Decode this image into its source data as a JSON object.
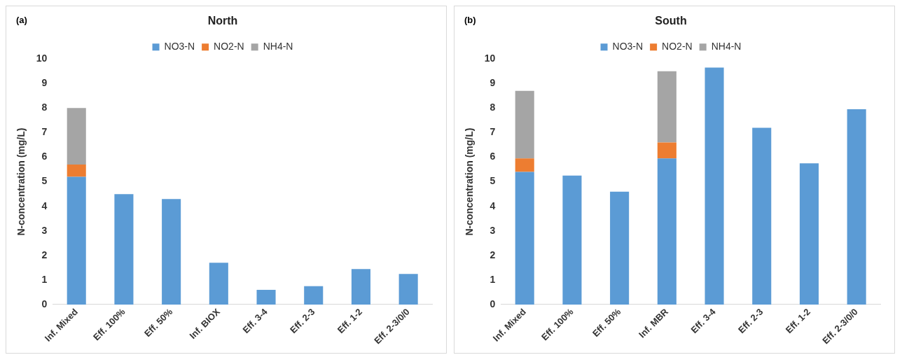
{
  "chart_data": [
    {
      "type": "bar",
      "title": "North",
      "ylabel": "N-concentration (mg/L)",
      "annotations": [
        "(a)"
      ],
      "categories": [
        "Inf. Mixed",
        "Eff. 100%",
        "Eff. 50%",
        "Inf. BIOX",
        "Eff. 3-4",
        "Eff. 2-3",
        "Eff. 1-2",
        "Eff. 2-3/0/0"
      ],
      "series": [
        {
          "name": "NO3-N",
          "color": "#5b9bd5",
          "values": [
            5.2,
            4.5,
            4.3,
            1.7,
            0.6,
            0.75,
            1.45,
            1.25
          ]
        },
        {
          "name": "NO2-N",
          "color": "#ed7d31",
          "values": [
            0.5,
            0,
            0,
            0,
            0,
            0,
            0,
            0
          ]
        },
        {
          "name": "NH4-N",
          "color": "#a5a5a5",
          "values": [
            2.3,
            0,
            0,
            0,
            0,
            0,
            0,
            0
          ]
        }
      ],
      "stacked": true,
      "ylim": [
        0,
        10
      ],
      "yticks": [
        0,
        1,
        2,
        3,
        4,
        5,
        6,
        7,
        8,
        9,
        10
      ],
      "grid": false,
      "legend": "top"
    },
    {
      "type": "bar",
      "title": "South",
      "ylabel": "N-concentration (mg/L)",
      "annotations": [
        "(b)"
      ],
      "categories": [
        "Inf. Mixed",
        "Eff. 100%",
        "Eff. 50%",
        "Inf. MBR",
        "Eff. 3-4",
        "Eff. 2-3",
        "Eff. 1-2",
        "Eff. 2-3/0/0"
      ],
      "series": [
        {
          "name": "NO3-N",
          "color": "#5b9bd5",
          "values": [
            5.4,
            5.25,
            4.6,
            5.95,
            9.65,
            7.2,
            5.75,
            7.95
          ]
        },
        {
          "name": "NO2-N",
          "color": "#ed7d31",
          "values": [
            0.55,
            0,
            0,
            0.65,
            0,
            0,
            0,
            0
          ]
        },
        {
          "name": "NH4-N",
          "color": "#a5a5a5",
          "values": [
            2.75,
            0,
            0,
            2.9,
            0,
            0,
            0,
            0
          ]
        }
      ],
      "stacked": true,
      "ylim": [
        0,
        10
      ],
      "yticks": [
        0,
        1,
        2,
        3,
        4,
        5,
        6,
        7,
        8,
        9,
        10
      ],
      "grid": false,
      "legend": "top"
    }
  ]
}
